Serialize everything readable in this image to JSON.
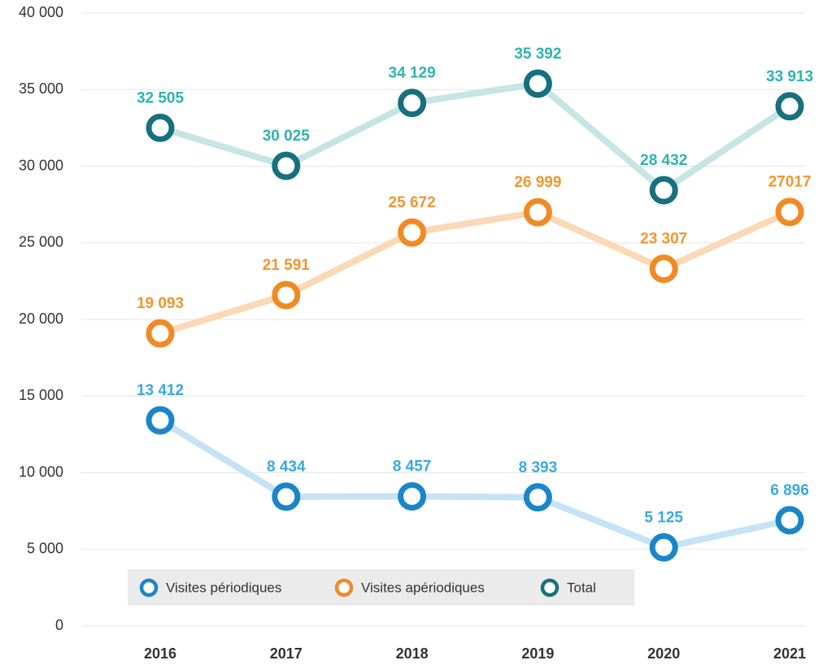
{
  "chart_data": {
    "type": "line",
    "categories": [
      "2016",
      "2017",
      "2018",
      "2019",
      "2020",
      "2021"
    ],
    "series": [
      {
        "name": "Visites périodiques",
        "color": "#1a86c8",
        "line_color": "#c6e3f6",
        "label_color": "#3aa9e0",
        "values": [
          13412,
          8434,
          8457,
          8393,
          5125,
          6896
        ],
        "value_labels": [
          "13 412",
          "8 434",
          "8 457",
          "8 393",
          "5 125",
          "6 896"
        ]
      },
      {
        "name": "Visites apériodiques",
        "color": "#f08a24",
        "line_color": "#fbd8b6",
        "label_color": "#f0962d",
        "values": [
          19093,
          21591,
          25672,
          26999,
          23307,
          27017
        ],
        "value_labels": [
          "19 093",
          "21 591",
          "25 672",
          "26 999",
          "23 307",
          "27017"
        ]
      },
      {
        "name": "Total",
        "color": "#17707e",
        "line_color": "#c6e5e4",
        "label_color": "#2bb5b0",
        "values": [
          32505,
          30025,
          34129,
          35392,
          28432,
          33913
        ],
        "value_labels": [
          "32 505",
          "30 025",
          "34 129",
          "35 392",
          "28 432",
          "33 913"
        ]
      }
    ],
    "ylim": [
      0,
      40000
    ],
    "yticks": [
      0,
      {
        "value": 5000,
        "label": "5 000"
      },
      {
        "value": 10000,
        "label": "10 000"
      },
      {
        "value": 15000,
        "label": "15 000"
      },
      {
        "value": 20000,
        "label": "20 000"
      },
      {
        "value": 25000,
        "label": "25 000"
      },
      {
        "value": 30000,
        "label": "30 000"
      },
      {
        "value": 35000,
        "label": "35 000"
      },
      {
        "value": 40000,
        "label": "40 000"
      }
    ],
    "grid": true,
    "legend": "bottom"
  }
}
